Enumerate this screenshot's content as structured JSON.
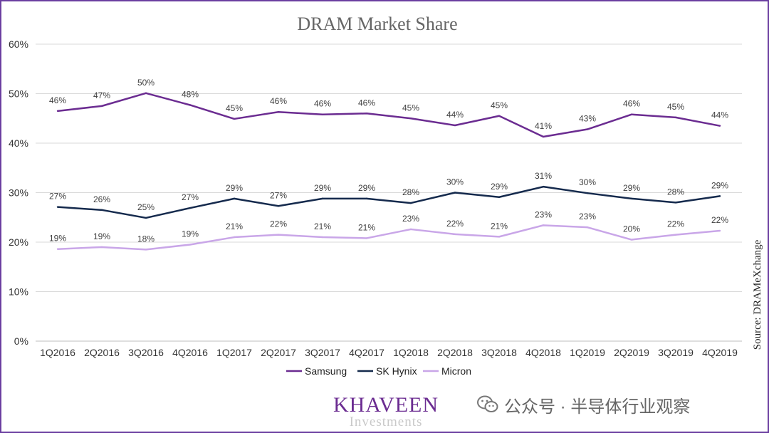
{
  "chart_data": {
    "type": "line",
    "title": "DRAM Market Share",
    "categories": [
      "1Q2016",
      "2Q2016",
      "3Q2016",
      "4Q2016",
      "1Q2017",
      "2Q2017",
      "3Q2017",
      "4Q2017",
      "1Q2018",
      "2Q2018",
      "3Q2018",
      "4Q2018",
      "1Q2019",
      "2Q2019",
      "3Q2019",
      "4Q2019"
    ],
    "y_ticks": [
      "0%",
      "10%",
      "20%",
      "30%",
      "40%",
      "50%",
      "60%"
    ],
    "ylim": [
      0,
      60
    ],
    "grid": true,
    "legend_position": "bottom",
    "series": [
      {
        "name": "Samsung",
        "color": "#6b2c91",
        "values": [
          46.5,
          47.5,
          50.1,
          47.7,
          44.9,
          46.3,
          45.8,
          46.0,
          45.0,
          43.6,
          45.5,
          41.3,
          42.8,
          45.8,
          45.2,
          43.5
        ],
        "labels": [
          "46%",
          "47%",
          "50%",
          "48%",
          "45%",
          "46%",
          "46%",
          "46%",
          "45%",
          "44%",
          "45%",
          "41%",
          "43%",
          "46%",
          "45%",
          "44%"
        ]
      },
      {
        "name": "SK Hynix",
        "color": "#152a4d",
        "values": [
          27.1,
          26.5,
          24.9,
          26.9,
          28.8,
          27.3,
          28.8,
          28.8,
          27.9,
          30.0,
          29.1,
          31.2,
          29.9,
          28.8,
          28.0,
          29.3
        ],
        "labels": [
          "27%",
          "26%",
          "25%",
          "27%",
          "29%",
          "27%",
          "29%",
          "29%",
          "28%",
          "30%",
          "29%",
          "31%",
          "30%",
          "29%",
          "28%",
          "29%"
        ]
      },
      {
        "name": "Micron",
        "color": "#c9a6e8",
        "values": [
          18.6,
          19.0,
          18.5,
          19.5,
          21.0,
          21.5,
          21.0,
          20.8,
          22.6,
          21.6,
          21.1,
          23.4,
          23.0,
          20.5,
          21.5,
          22.3
        ],
        "labels": [
          "19%",
          "19%",
          "18%",
          "19%",
          "21%",
          "22%",
          "21%",
          "21%",
          "23%",
          "22%",
          "21%",
          "23%",
          "23%",
          "20%",
          "22%",
          "22%"
        ]
      }
    ],
    "source_note": "Source: DRAMeXchange"
  },
  "branding": {
    "logo_main": "KHAVEEN",
    "logo_sub": "Investments",
    "watermark": "公众号 · 半导体行业观察",
    "watermark_icon": "wechat-icon"
  },
  "colors": {
    "frame": "#6b3fa0",
    "grid": "#d9d9d9",
    "axis_text": "#333333",
    "title": "#666666"
  }
}
